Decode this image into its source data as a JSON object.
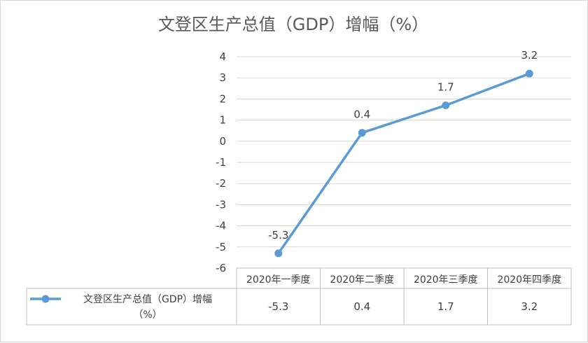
{
  "chart_data": {
    "type": "line",
    "title": "文登区生产总值（GDP）增幅（%）",
    "categories": [
      "2020年一季度",
      "2020年二季度",
      "2020年三季度",
      "2020年四季度"
    ],
    "series": [
      {
        "name": "文登区生产总值（GDP）增幅（%）",
        "values": [
          -5.3,
          0.4,
          1.7,
          3.2
        ],
        "color": "#5b9bd5"
      }
    ],
    "data_labels": [
      "-5.3",
      "0.4",
      "1.7",
      "3.2"
    ],
    "table_values": [
      "-5.3",
      "0.4",
      "1.7",
      "3.2"
    ],
    "legend_lines": [
      "文登区生产总值（GDP）增幅",
      "（%）"
    ],
    "ylim": [
      -6,
      4
    ],
    "yticks": [
      4,
      3,
      2,
      1,
      0,
      -1,
      -2,
      -3,
      -4,
      -5,
      -6
    ],
    "grid": true,
    "data_table": true,
    "legend_position": "data-table-left"
  }
}
